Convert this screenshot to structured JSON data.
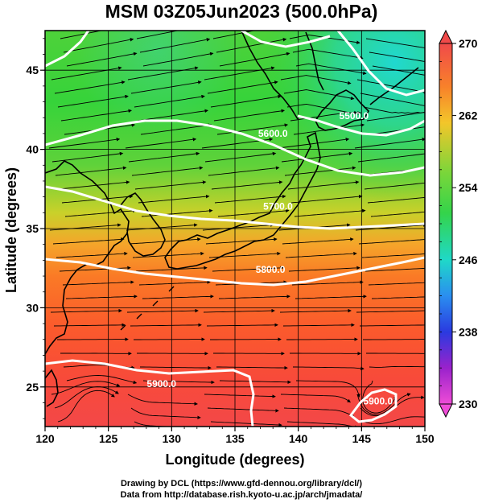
{
  "chart_data": {
    "type": "heatmap",
    "title": "MSM 03Z05Jun2023 (500.0hPa)",
    "xlabel": "Longitude (degrees)",
    "ylabel": "Latitude  (degrees)",
    "xlim": [
      120,
      150
    ],
    "ylim": [
      22.5,
      47.5
    ],
    "x_ticks": [
      "120",
      "125",
      "130",
      "135",
      "140",
      "145",
      "150"
    ],
    "y_ticks": [
      "25",
      "30",
      "35",
      "40",
      "45"
    ],
    "colorbar": {
      "min": 230,
      "max": 270,
      "ticks": [
        "270",
        "262",
        "254",
        "246",
        "238",
        "230"
      ]
    },
    "contours": [
      {
        "label": "5900.0",
        "lon": 129.2,
        "lat": 25.0
      },
      {
        "label": "5800.0",
        "lon": 137.8,
        "lat": 32.2
      },
      {
        "label": "5700.0",
        "lon": 138.4,
        "lat": 36.2
      },
      {
        "label": "5600.0",
        "lon": 138.0,
        "lat": 40.8
      },
      {
        "label": "5500.0",
        "lon": 144.4,
        "lat": 41.9
      },
      {
        "label": "5900.0",
        "lon": 146.3,
        "lat": 23.9
      }
    ],
    "grid": true,
    "overlay": "wind streamlines"
  },
  "credits": {
    "line1": "Drawing by DCL (https://www.gfd-dennou.org/library/dcl/)",
    "line2": "Data from http://database.rish.kyoto-u.ac.jp/arch/jmadata/"
  },
  "colors": {
    "warm": "#ff4a3a",
    "mid": "#36d33a",
    "cold": "#1fd9c8",
    "contour": "#ffffff",
    "coast": "#000000"
  }
}
